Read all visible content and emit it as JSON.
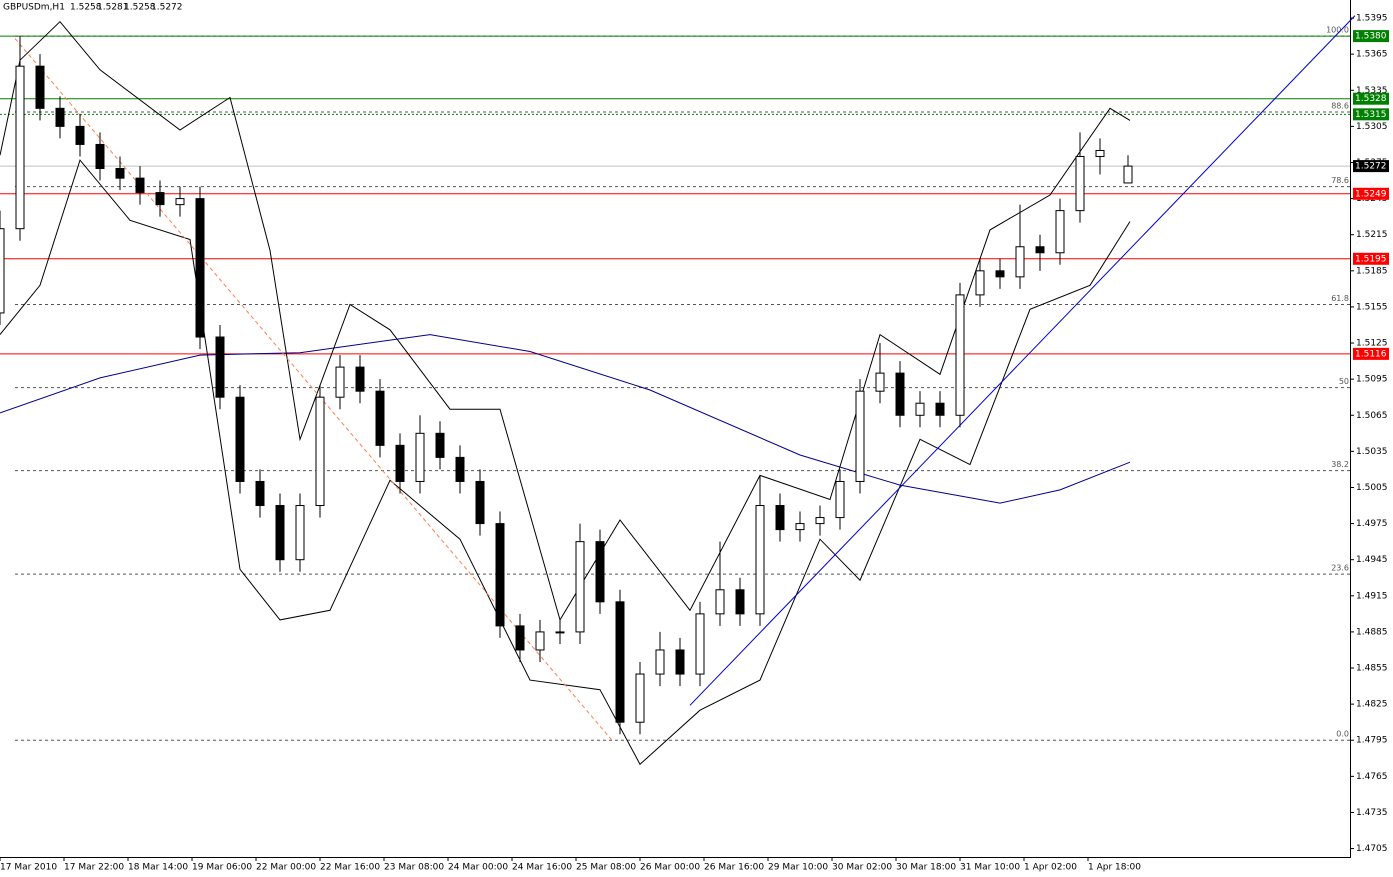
{
  "chart_data": {
    "type": "candlestick",
    "symbol_label": "GBPUSDm,H1",
    "x": [
      0,
      5,
      10,
      15,
      20,
      25,
      30,
      35,
      40,
      45,
      50,
      55,
      60,
      65,
      70,
      75,
      80,
      85,
      90,
      95,
      100,
      105,
      110,
      115,
      120,
      125,
      130,
      135,
      140,
      145,
      150,
      155,
      160,
      165,
      170,
      175,
      180,
      185,
      190,
      195,
      200,
      205,
      210,
      215,
      220,
      225,
      230,
      235,
      240,
      245,
      250,
      255,
      260,
      265,
      270,
      275,
      282
    ],
    "candles": [
      [
        1.515,
        1.5235,
        1.514,
        1.522
      ],
      [
        1.522,
        1.538,
        1.521,
        1.5355
      ],
      [
        1.5355,
        1.5365,
        1.531,
        1.532
      ],
      [
        1.532,
        1.533,
        1.5295,
        1.5305
      ],
      [
        1.5305,
        1.5315,
        1.528,
        1.529
      ],
      [
        1.529,
        1.53,
        1.526,
        1.527
      ],
      [
        1.527,
        1.528,
        1.5252,
        1.5262
      ],
      [
        1.5262,
        1.5272,
        1.524,
        1.525
      ],
      [
        1.525,
        1.526,
        1.523,
        1.524
      ],
      [
        1.524,
        1.5255,
        1.523,
        1.5245
      ],
      [
        1.5245,
        1.5255,
        1.512,
        1.513
      ],
      [
        1.513,
        1.514,
        1.507,
        1.508
      ],
      [
        1.508,
        1.509,
        1.5,
        1.501
      ],
      [
        1.501,
        1.502,
        1.498,
        1.499
      ],
      [
        1.499,
        1.5,
        1.4935,
        1.4945
      ],
      [
        1.4945,
        1.5,
        1.4935,
        1.499
      ],
      [
        1.499,
        1.509,
        1.498,
        1.508
      ],
      [
        1.508,
        1.5115,
        1.507,
        1.5105
      ],
      [
        1.5105,
        1.5115,
        1.5075,
        1.5085
      ],
      [
        1.5085,
        1.5095,
        1.503,
        1.504
      ],
      [
        1.504,
        1.505,
        1.5,
        1.501
      ],
      [
        1.501,
        1.5065,
        1.5,
        1.505
      ],
      [
        1.505,
        1.506,
        1.502,
        1.503
      ],
      [
        1.503,
        1.504,
        1.5,
        1.501
      ],
      [
        1.501,
        1.502,
        1.4965,
        1.4975
      ],
      [
        1.4975,
        1.4985,
        1.488,
        1.489
      ],
      [
        1.489,
        1.49,
        1.486,
        1.487
      ],
      [
        1.487,
        1.4895,
        1.486,
        1.4885
      ],
      [
        1.4885,
        1.4895,
        1.4875,
        1.4885
      ],
      [
        1.4885,
        1.4975,
        1.4875,
        1.496
      ],
      [
        1.496,
        1.497,
        1.49,
        1.491
      ],
      [
        1.491,
        1.492,
        1.48,
        1.481
      ],
      [
        1.481,
        1.486,
        1.48,
        1.485
      ],
      [
        1.485,
        1.4885,
        1.484,
        1.487
      ],
      [
        1.487,
        1.488,
        1.484,
        1.485
      ],
      [
        1.485,
        1.491,
        1.484,
        1.49
      ],
      [
        1.49,
        1.496,
        1.489,
        1.492
      ],
      [
        1.492,
        1.493,
        1.489,
        1.49
      ],
      [
        1.49,
        1.5015,
        1.489,
        1.499
      ],
      [
        1.499,
        1.5,
        1.496,
        1.497
      ],
      [
        1.497,
        1.4985,
        1.496,
        1.4975
      ],
      [
        1.4975,
        1.499,
        1.4965,
        1.498
      ],
      [
        1.498,
        1.502,
        1.497,
        1.501
      ],
      [
        1.501,
        1.5095,
        1.5,
        1.5085
      ],
      [
        1.5085,
        1.5125,
        1.5075,
        1.51
      ],
      [
        1.51,
        1.511,
        1.5055,
        1.5065
      ],
      [
        1.5065,
        1.5085,
        1.5055,
        1.5075
      ],
      [
        1.5075,
        1.5085,
        1.5055,
        1.5065
      ],
      [
        1.5065,
        1.5175,
        1.5055,
        1.5165
      ],
      [
        1.5165,
        1.5195,
        1.5155,
        1.5185
      ],
      [
        1.5185,
        1.5195,
        1.517,
        1.518
      ],
      [
        1.518,
        1.524,
        1.517,
        1.5205
      ],
      [
        1.5205,
        1.5215,
        1.5185,
        1.52
      ],
      [
        1.52,
        1.5245,
        1.519,
        1.5235
      ],
      [
        1.5235,
        1.53,
        1.5225,
        1.528
      ],
      [
        1.528,
        1.5295,
        1.5265,
        1.5285
      ],
      [
        1.5258,
        1.5281,
        1.5258,
        1.5272
      ]
    ],
    "up_color": "#ffffff",
    "down_color": "#000000",
    "xlim": [
      0,
      337.5
    ],
    "ylim": [
      1.4698,
      1.541
    ],
    "xticks": [
      {
        "value": 0,
        "label": "17 Mar 2010"
      },
      {
        "value": 16,
        "label": "17 Mar 22:00"
      },
      {
        "value": 32,
        "label": "18 Mar 14:00"
      },
      {
        "value": 48,
        "label": "19 Mar 06:00"
      },
      {
        "value": 64,
        "label": "22 Mar 00:00"
      },
      {
        "value": 80,
        "label": "22 Mar 16:00"
      },
      {
        "value": 96,
        "label": "23 Mar 08:00"
      },
      {
        "value": 112,
        "label": "24 Mar 00:00"
      },
      {
        "value": 128,
        "label": "24 Mar 16:00"
      },
      {
        "value": 144,
        "label": "25 Mar 08:00"
      },
      {
        "value": 160,
        "label": "26 Mar 00:00"
      },
      {
        "value": 176,
        "label": "26 Mar 16:00"
      },
      {
        "value": 192,
        "label": "29 Mar 10:00"
      },
      {
        "value": 208,
        "label": "30 Mar 02:00"
      },
      {
        "value": 224,
        "label": "30 Mar 18:00"
      },
      {
        "value": 240,
        "label": "31 Mar 10:00"
      },
      {
        "value": 256,
        "label": "1 Apr 02:00"
      },
      {
        "value": 272,
        "label": "1 Apr 18:00"
      }
    ],
    "yticks": [
      1.5395,
      1.5365,
      1.5335,
      1.5305,
      1.5275,
      1.5245,
      1.5215,
      1.5185,
      1.5155,
      1.5125,
      1.5095,
      1.5065,
      1.5035,
      1.5005,
      1.4975,
      1.4945,
      1.4915,
      1.4885,
      1.4855,
      1.4825,
      1.4795,
      1.4765,
      1.4735,
      1.4705
    ],
    "current_price": 1.5272,
    "hlines": [
      {
        "value": 1.538,
        "label": "1.5380",
        "color": "#008000",
        "dashed": false
      },
      {
        "value": 1.5328,
        "color": "#008000",
        "dashed": false
      },
      {
        "value": 1.5315,
        "color": "#008000",
        "dashed": true
      },
      {
        "value": 1.5249,
        "color": "#ff0000",
        "dashed": false
      },
      {
        "value": 1.5195,
        "color": "#ff0000",
        "dashed": false
      },
      {
        "value": 1.5116,
        "color": "#ff0000",
        "dashed": false
      }
    ],
    "fibo": [
      {
        "price": 1.538,
        "level": "100.0"
      },
      {
        "price": 1.5317,
        "level": "88.6"
      },
      {
        "price": 1.5255,
        "level": "78.6"
      },
      {
        "price": 1.5157,
        "level": "61.8"
      },
      {
        "price": 1.5088,
        "level": "50"
      },
      {
        "price": 1.5019,
        "level": "38.2"
      },
      {
        "price": 1.4933,
        "level": "23.6"
      },
      {
        "price": 1.4795,
        "level": "0.0"
      }
    ],
    "indicators": [
      {
        "color": "#00008b",
        "x": [
          0,
          25,
          50,
          75,
          107.5,
          132.5,
          162.5,
          200,
          225,
          250,
          265,
          282.5
        ],
        "values": [
          1.5067,
          1.5096,
          1.5115,
          1.5117,
          1.5132,
          1.5118,
          1.5086,
          1.5032,
          1.5007,
          1.4992,
          1.5003,
          1.5026
        ]
      },
      {
        "color": "#000000",
        "x": [
          0,
          5,
          15,
          25,
          45,
          57.5,
          67.5,
          75,
          87.5,
          97.5,
          112.5,
          125,
          140,
          155,
          172.5,
          190,
          207.5,
          220,
          235,
          247.5,
          262.5,
          277.5,
          282.5
        ],
        "values": [
          1.5281,
          1.536,
          1.5392,
          1.5352,
          1.5302,
          1.5329,
          1.5202,
          1.5045,
          1.5157,
          1.5136,
          1.507,
          1.507,
          1.4895,
          1.4978,
          1.4903,
          1.5015,
          1.4995,
          1.5132,
          1.5099,
          1.5219,
          1.5248,
          1.532,
          1.531
        ]
      },
      {
        "color": "#000000",
        "x": [
          0,
          10,
          20,
          32.5,
          47.5,
          60,
          70,
          82.5,
          97.5,
          115,
          132.5,
          150,
          160,
          175,
          190,
          205,
          215,
          230,
          242.5,
          257.5,
          272.5,
          282.5
        ],
        "values": [
          1.5132,
          1.5173,
          1.5277,
          1.5227,
          1.5211,
          1.4937,
          1.4895,
          1.4903,
          1.5011,
          1.4962,
          1.4845,
          1.4837,
          1.4775,
          1.482,
          1.4845,
          1.4962,
          1.4928,
          1.5045,
          1.5024,
          1.5153,
          1.5173,
          1.5226
        ]
      }
    ],
    "trendlines": [
      {
        "color": "#0000cd",
        "dashed": false,
        "x": [
          172.5,
          338.75
        ],
        "values": [
          1.4824,
          1.5397
        ]
      },
      {
        "color": "#ff7f50",
        "dashed": true,
        "x": [
          3.75,
          153
        ],
        "values": [
          1.5378,
          1.4795
        ]
      }
    ]
  }
}
